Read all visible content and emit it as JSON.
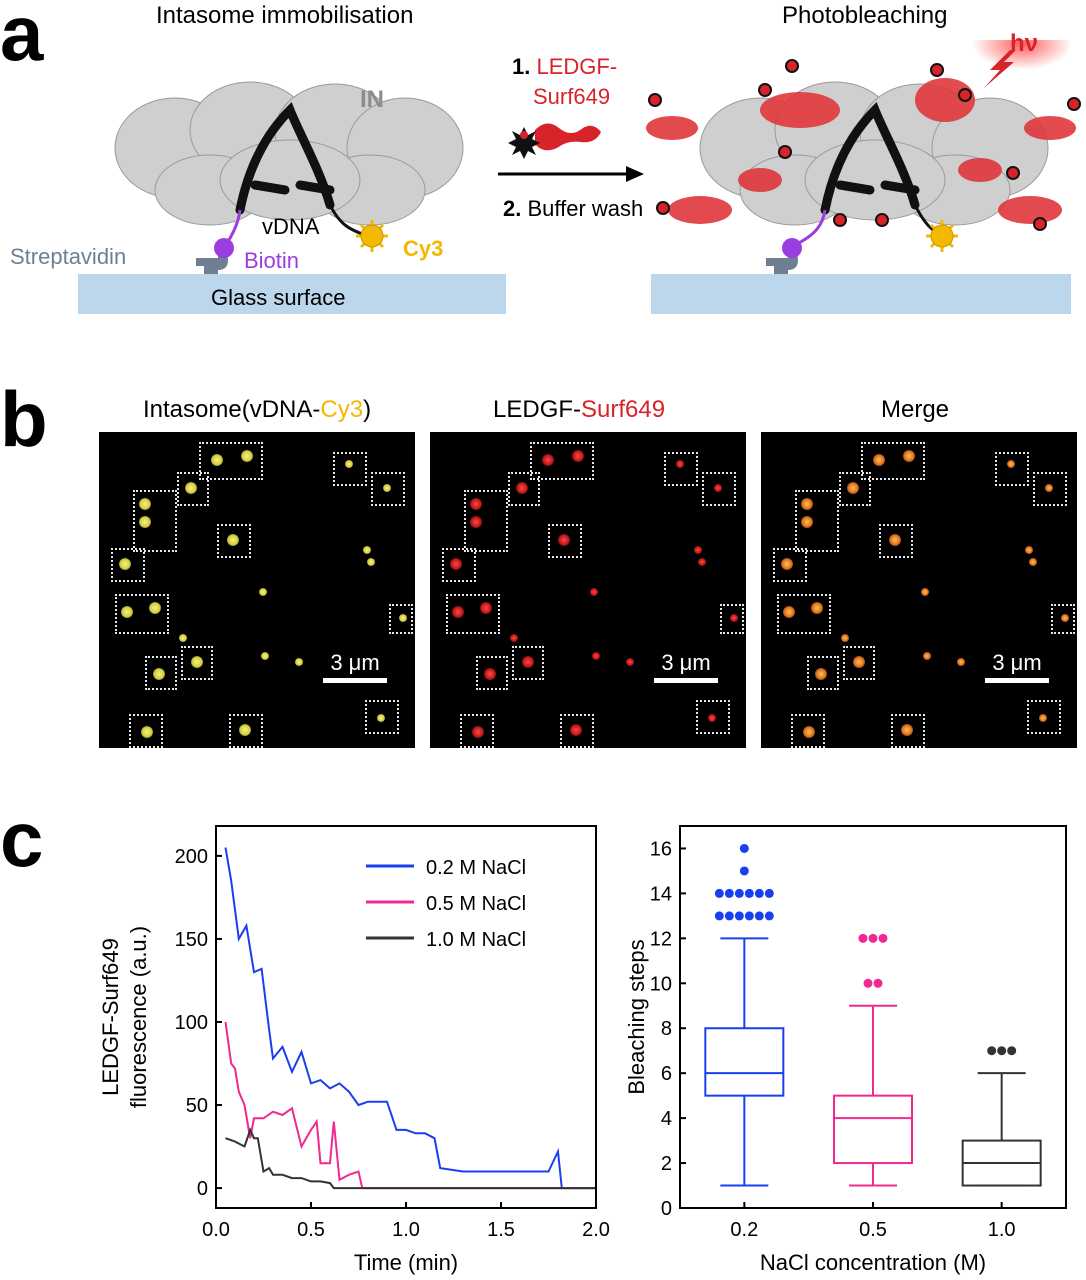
{
  "panel_a": {
    "letter": "a",
    "left_title": "Intasome immobilisation",
    "right_title": "Photobleaching",
    "label_IN": "IN",
    "label_vDNA": "vDNA",
    "label_streptavidin": "Streptavidin",
    "label_biotin": "Biotin",
    "label_cy3": "Cy3",
    "label_glass": "Glass surface",
    "step1_num": "1.",
    "step1_text_line1": "LEDGF-",
    "step1_text_line2": "Surf649",
    "step2_num": "2.",
    "step2_text": "Buffer wash",
    "hv": "hν",
    "colors": {
      "glass": "#bcd6ec",
      "biotin": "#9b3ee0",
      "cy3": "#f5b800",
      "ledgf": "#d9232a",
      "streptavidin": "#6f7f93"
    }
  },
  "panel_b": {
    "letter": "b",
    "titles": [
      {
        "prefix": "Intasome(vDNA-",
        "colored": "Cy3",
        "suffix": ")",
        "color": "#f5b800"
      },
      {
        "prefix": "LEDGF-",
        "colored": "Surf649",
        "suffix": "",
        "color": "#d9232a"
      },
      {
        "prefix": "Merge",
        "colored": "",
        "suffix": "",
        "color": "#000000"
      }
    ],
    "scale_label": "3 μm"
  },
  "panel_c": {
    "letter": "c"
  },
  "chart_data": [
    {
      "type": "line",
      "xlabel": "Time (min)",
      "ylabel_line1": "LEDGF-Surf649",
      "ylabel_line2": "fluorescence (a.u.)",
      "xlim": [
        0.0,
        2.0
      ],
      "ylim": [
        -12,
        218
      ],
      "xticks": [
        "0.0",
        "0.5",
        "1.0",
        "1.5",
        "2.0"
      ],
      "yticks": [
        "0",
        "50",
        "100",
        "150",
        "200"
      ],
      "legend_position": "top-right",
      "series": [
        {
          "name": "0.2 M NaCl",
          "color": "#1a3ff0",
          "x": [
            0.05,
            0.08,
            0.12,
            0.16,
            0.2,
            0.24,
            0.28,
            0.3,
            0.35,
            0.4,
            0.45,
            0.5,
            0.55,
            0.6,
            0.65,
            0.7,
            0.75,
            0.8,
            0.85,
            0.9,
            0.95,
            1.0,
            1.05,
            1.1,
            1.15,
            1.18,
            1.3,
            1.45,
            1.6,
            1.75,
            1.8,
            1.82,
            1.9,
            2.0
          ],
          "y": [
            205,
            185,
            150,
            158,
            130,
            132,
            95,
            78,
            85,
            70,
            82,
            63,
            65,
            60,
            63,
            58,
            50,
            52,
            52,
            52,
            35,
            35,
            33,
            33,
            30,
            12,
            10,
            10,
            10,
            10,
            22,
            0,
            0,
            0
          ]
        },
        {
          "name": "0.5 M NaCl",
          "color": "#f0288f",
          "x": [
            0.05,
            0.08,
            0.1,
            0.12,
            0.15,
            0.18,
            0.2,
            0.25,
            0.3,
            0.35,
            0.4,
            0.45,
            0.5,
            0.53,
            0.55,
            0.6,
            0.62,
            0.65,
            0.7,
            0.75,
            0.77,
            0.8,
            1.0,
            1.5,
            2.0
          ],
          "y": [
            100,
            75,
            72,
            58,
            50,
            30,
            42,
            42,
            46,
            44,
            48,
            25,
            35,
            40,
            15,
            15,
            40,
            5,
            8,
            10,
            0,
            0,
            0,
            0,
            0
          ]
        },
        {
          "name": "1.0 M NaCl",
          "color": "#333333",
          "x": [
            0.05,
            0.1,
            0.15,
            0.18,
            0.2,
            0.22,
            0.25,
            0.28,
            0.3,
            0.35,
            0.4,
            0.45,
            0.5,
            0.55,
            0.6,
            0.62,
            0.65,
            0.8,
            1.0,
            1.5,
            2.0
          ],
          "y": [
            30,
            28,
            25,
            35,
            30,
            30,
            10,
            12,
            8,
            8,
            6,
            6,
            4,
            4,
            3,
            0,
            0,
            0,
            0,
            0,
            0
          ]
        }
      ]
    },
    {
      "type": "box",
      "xlabel": "NaCl concentration (M)",
      "ylabel": "Bleaching steps",
      "ylim": [
        0,
        17
      ],
      "yticks": [
        "0",
        "2",
        "4",
        "6",
        "8",
        "10",
        "12",
        "14",
        "16"
      ],
      "categories": [
        "0.2",
        "0.5",
        "1.0"
      ],
      "series": [
        {
          "category": "0.2",
          "color": "#1a3ff0",
          "whisker_low": 1,
          "q1": 5,
          "median": 6,
          "q3": 8,
          "whisker_high": 12,
          "outliers": [
            13,
            13,
            13,
            13,
            13,
            13,
            14,
            14,
            14,
            14,
            14,
            14,
            15,
            16
          ]
        },
        {
          "category": "0.5",
          "color": "#f0288f",
          "whisker_low": 1,
          "q1": 2,
          "median": 4,
          "q3": 5,
          "whisker_high": 9,
          "outliers": [
            10,
            10,
            12,
            12,
            12
          ]
        },
        {
          "category": "1.0",
          "color": "#333333",
          "whisker_low": 1,
          "q1": 1,
          "median": 2,
          "q3": 3,
          "whisker_high": 6,
          "outliers": [
            7,
            7,
            7
          ]
        }
      ]
    }
  ]
}
